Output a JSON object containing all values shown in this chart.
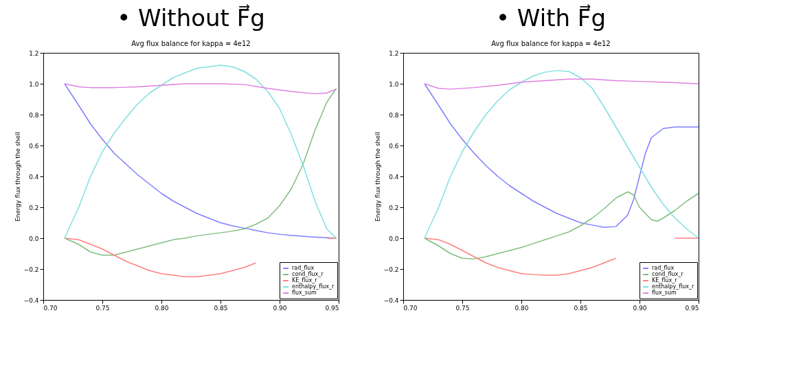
{
  "chart_data": [
    {
      "type": "line",
      "title": "• Without F⃗g",
      "subtitle": "Avg flux balance for kappa = 4e12",
      "ylabel": "Energy flux through the shell",
      "legend": "bottom right",
      "grid": false,
      "xlim": [
        0.7,
        0.95
      ],
      "xticks": [
        {
          "value": 0.7,
          "label": "0.70"
        },
        0.75,
        {
          "value": 0.8,
          "label": "0.80"
        },
        0.85,
        {
          "value": 0.9,
          "label": "0.90"
        },
        0.95
      ],
      "ylim": [
        -0.4,
        1.2
      ],
      "yticks": [
        {
          "value": -0.4,
          "label": "−0.4"
        },
        {
          "value": -0.2,
          "label": "−0.2"
        },
        {
          "value": 0,
          "label": "0.0"
        },
        0.2,
        0.4,
        0.6,
        0.8,
        {
          "value": 1,
          "label": "1.0"
        },
        1.2
      ],
      "series": [
        {
          "name": "rad_flux",
          "color": "#7f7fff",
          "x": [
            0.718,
            0.73,
            0.74,
            0.75,
            0.76,
            0.77,
            0.78,
            0.79,
            0.8,
            0.81,
            0.82,
            0.83,
            0.84,
            0.85,
            0.86,
            0.87,
            0.88,
            0.89,
            0.9,
            0.91,
            0.92,
            0.93,
            0.948
          ],
          "values": [
            1.0,
            0.86,
            0.74,
            0.64,
            0.55,
            0.48,
            0.41,
            0.35,
            0.29,
            0.24,
            0.2,
            0.16,
            0.13,
            0.1,
            0.08,
            0.065,
            0.05,
            0.035,
            0.025,
            0.018,
            0.012,
            0.007,
            0.0
          ]
        },
        {
          "name": "cond_flux_r",
          "color": "#7fbf7f",
          "x": [
            0.718,
            0.73,
            0.74,
            0.75,
            0.76,
            0.77,
            0.78,
            0.79,
            0.8,
            0.81,
            0.82,
            0.83,
            0.84,
            0.85,
            0.86,
            0.87,
            0.88,
            0.89,
            0.9,
            0.91,
            0.92,
            0.93,
            0.94,
            0.948
          ],
          "values": [
            0.0,
            -0.04,
            -0.09,
            -0.11,
            -0.11,
            -0.09,
            -0.07,
            -0.05,
            -0.03,
            -0.01,
            0.0,
            0.015,
            0.025,
            0.035,
            0.045,
            0.06,
            0.09,
            0.13,
            0.21,
            0.32,
            0.48,
            0.7,
            0.88,
            0.97
          ]
        },
        {
          "name": "KE_flux_r",
          "color": "#ff7f7f",
          "x": [
            0.718,
            0.73,
            0.74,
            0.75,
            0.76,
            0.77,
            0.78,
            0.79,
            0.8,
            0.81,
            0.82,
            0.83,
            0.84,
            0.85,
            0.86,
            0.87,
            0.88,
            0.89,
            0.9,
            0.91,
            0.92,
            0.93,
            0.94,
            0.948
          ],
          "values": [
            0.0,
            -0.01,
            -0.04,
            -0.07,
            -0.11,
            -0.15,
            -0.18,
            -0.21,
            -0.23,
            -0.24,
            -0.25,
            -0.25,
            -0.24,
            -0.23,
            -0.21,
            -0.19,
            -0.16,
            null,
            null,
            null,
            null,
            null,
            0.0,
            0.0
          ]
        },
        {
          "name": "enthalpy_flux_r",
          "color": "#7fdfdf",
          "x": [
            0.718,
            0.73,
            0.74,
            0.75,
            0.76,
            0.77,
            0.78,
            0.79,
            0.8,
            0.81,
            0.82,
            0.83,
            0.84,
            0.85,
            0.86,
            0.87,
            0.88,
            0.89,
            0.9,
            0.91,
            0.92,
            0.93,
            0.94,
            0.948
          ],
          "values": [
            0.0,
            0.2,
            0.4,
            0.56,
            0.68,
            0.78,
            0.87,
            0.94,
            0.99,
            1.04,
            1.07,
            1.1,
            1.11,
            1.12,
            1.11,
            1.08,
            1.03,
            0.95,
            0.84,
            0.67,
            0.47,
            0.24,
            0.06,
            0.0
          ]
        },
        {
          "name": "flux_sum",
          "color": "#df7fdf",
          "x": [
            0.718,
            0.73,
            0.74,
            0.76,
            0.78,
            0.8,
            0.82,
            0.85,
            0.87,
            0.89,
            0.91,
            0.93,
            0.94,
            0.948
          ],
          "values": [
            1.0,
            0.98,
            0.975,
            0.975,
            0.98,
            0.99,
            1.0,
            1.0,
            0.995,
            0.97,
            0.95,
            0.935,
            0.94,
            0.965
          ]
        }
      ]
    },
    {
      "type": "line",
      "title": "• With F⃗g",
      "subtitle": "Avg flux balance for kappa = 4e12",
      "ylabel": "Energy flux through the shell",
      "legend": "bottom right",
      "grid": false,
      "xlim": [
        0.7,
        0.95
      ],
      "xticks": [
        {
          "value": 0.7,
          "label": "0.70"
        },
        0.75,
        {
          "value": 0.8,
          "label": "0.80"
        },
        0.85,
        {
          "value": 0.9,
          "label": "0.90"
        },
        0.95
      ],
      "ylim": [
        -0.4,
        1.2
      ],
      "yticks": [
        {
          "value": -0.4,
          "label": "−0.4"
        },
        {
          "value": -0.2,
          "label": "−0.2"
        },
        {
          "value": 0,
          "label": "0.0"
        },
        0.2,
        0.4,
        0.6,
        0.8,
        {
          "value": 1,
          "label": "1.0"
        },
        1.2
      ],
      "series": [
        {
          "name": "rad_flux",
          "color": "#7f7fff",
          "x": [
            0.718,
            0.73,
            0.74,
            0.75,
            0.76,
            0.77,
            0.78,
            0.79,
            0.8,
            0.81,
            0.82,
            0.83,
            0.84,
            0.85,
            0.86,
            0.87,
            0.88,
            0.89,
            0.895,
            0.9,
            0.905,
            0.91,
            0.92,
            0.93,
            0.95
          ],
          "values": [
            1.0,
            0.86,
            0.74,
            0.64,
            0.55,
            0.47,
            0.4,
            0.34,
            0.29,
            0.24,
            0.2,
            0.16,
            0.13,
            0.1,
            0.085,
            0.07,
            0.075,
            0.15,
            0.25,
            0.4,
            0.55,
            0.65,
            0.71,
            0.72,
            0.72
          ]
        },
        {
          "name": "cond_flux_r",
          "color": "#7fbf7f",
          "x": [
            0.718,
            0.73,
            0.74,
            0.75,
            0.76,
            0.77,
            0.78,
            0.79,
            0.8,
            0.81,
            0.82,
            0.83,
            0.84,
            0.85,
            0.86,
            0.87,
            0.88,
            0.89,
            0.895,
            0.9,
            0.91,
            0.915,
            0.92,
            0.93,
            0.94,
            0.95
          ],
          "values": [
            0.0,
            -0.05,
            -0.1,
            -0.13,
            -0.135,
            -0.12,
            -0.1,
            -0.08,
            -0.06,
            -0.035,
            -0.01,
            0.015,
            0.04,
            0.08,
            0.13,
            0.19,
            0.26,
            0.3,
            0.28,
            0.2,
            0.12,
            0.11,
            0.13,
            0.18,
            0.24,
            0.29
          ]
        },
        {
          "name": "KE_flux_r",
          "color": "#ff7f7f",
          "x": [
            0.718,
            0.73,
            0.74,
            0.75,
            0.76,
            0.77,
            0.78,
            0.79,
            0.8,
            0.81,
            0.82,
            0.83,
            0.84,
            0.85,
            0.86,
            0.87,
            0.88,
            0.89,
            0.9,
            0.91,
            0.92,
            0.93,
            0.95
          ],
          "values": [
            0.0,
            -0.01,
            -0.04,
            -0.08,
            -0.12,
            -0.16,
            -0.19,
            -0.21,
            -0.23,
            -0.235,
            -0.24,
            -0.24,
            -0.23,
            -0.21,
            -0.19,
            -0.16,
            -0.13,
            null,
            null,
            null,
            null,
            0.0,
            0.0
          ]
        },
        {
          "name": "enthalpy_flux_r",
          "color": "#7fdfdf",
          "x": [
            0.718,
            0.73,
            0.74,
            0.75,
            0.76,
            0.77,
            0.78,
            0.79,
            0.8,
            0.81,
            0.82,
            0.83,
            0.84,
            0.85,
            0.86,
            0.87,
            0.88,
            0.89,
            0.9,
            0.91,
            0.92,
            0.93,
            0.94,
            0.95
          ],
          "values": [
            0.0,
            0.2,
            0.4,
            0.56,
            0.69,
            0.8,
            0.89,
            0.96,
            1.01,
            1.05,
            1.075,
            1.085,
            1.08,
            1.04,
            0.97,
            0.85,
            0.72,
            0.59,
            0.46,
            0.33,
            0.22,
            0.13,
            0.06,
            0.0
          ]
        },
        {
          "name": "flux_sum",
          "color": "#df7fdf",
          "x": [
            0.718,
            0.73,
            0.74,
            0.76,
            0.78,
            0.8,
            0.82,
            0.84,
            0.86,
            0.88,
            0.9,
            0.92,
            0.95
          ],
          "values": [
            1.0,
            0.97,
            0.965,
            0.975,
            0.99,
            1.01,
            1.02,
            1.03,
            1.03,
            1.02,
            1.015,
            1.01,
            1.0
          ]
        }
      ]
    }
  ]
}
